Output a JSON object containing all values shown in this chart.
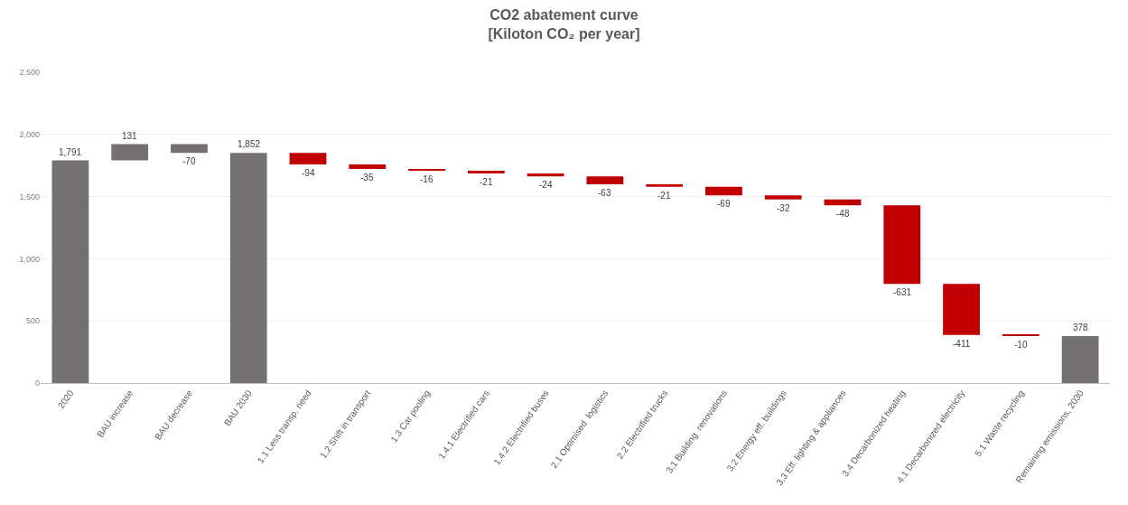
{
  "chart_data": {
    "type": "bar",
    "title": "CO2 abatement curve",
    "subtitle": "[Kiloton CO₂ per year]",
    "categories": [
      "2020",
      "BAU increase",
      "BAU decrease",
      "BAU 2030",
      "1.1 Less transp. need",
      "1.2 Shift in transport",
      "1.3 Car pooling",
      "1.4.1 Electrified cars",
      "1.4.2 Electrified buses",
      "2.1 Optimised  logistics",
      "2.2 Electrified trucks",
      "3.1 Building  renovations",
      "3.2 Energy eff. buildings",
      "3.3 Eff. lighting & appliances",
      "3.4 Decarbonized heating",
      "4.1 Decarbonized electricity",
      "5.1 Waste recycling",
      "Remaining emissions, 2030"
    ],
    "values": [
      1791,
      131,
      -70,
      1852,
      -94,
      -35,
      -16,
      -21,
      -24,
      -63,
      -21,
      -69,
      -32,
      -48,
      -631,
      -411,
      -10,
      378
    ],
    "base": [
      0,
      1791,
      1922,
      0,
      1852,
      1758,
      1723,
      1707,
      1686,
      1662,
      1599,
      1578,
      1509,
      1477,
      1429,
      798,
      387,
      0
    ],
    "colors": [
      "#767171",
      "#767171",
      "#767171",
      "#767171",
      "#c00000",
      "#c00000",
      "#c00000",
      "#c00000",
      "#c00000",
      "#c00000",
      "#c00000",
      "#c00000",
      "#c00000",
      "#c00000",
      "#c00000",
      "#c00000",
      "#c00000",
      "#767171"
    ],
    "ylim": [
      0,
      2500
    ],
    "yticks": [
      {
        "value": 0,
        "label": "0"
      },
      {
        "value": 500,
        "label": "500"
      },
      {
        "value": 1000,
        "label": "1,000"
      },
      {
        "value": 1500,
        "label": "1,500"
      },
      {
        "value": 2000,
        "label": "2,000"
      },
      {
        "value": 2500,
        "label": "2,500"
      }
    ],
    "value_labels": [
      "1,791",
      "131",
      "-70",
      "1,852",
      "-94",
      "-35",
      "-16",
      "-21",
      "-24",
      "-63",
      "-21",
      "-69",
      "-32",
      "-48",
      "-631",
      "-411",
      "-10",
      "378"
    ],
    "grid": "y",
    "legend": false
  }
}
